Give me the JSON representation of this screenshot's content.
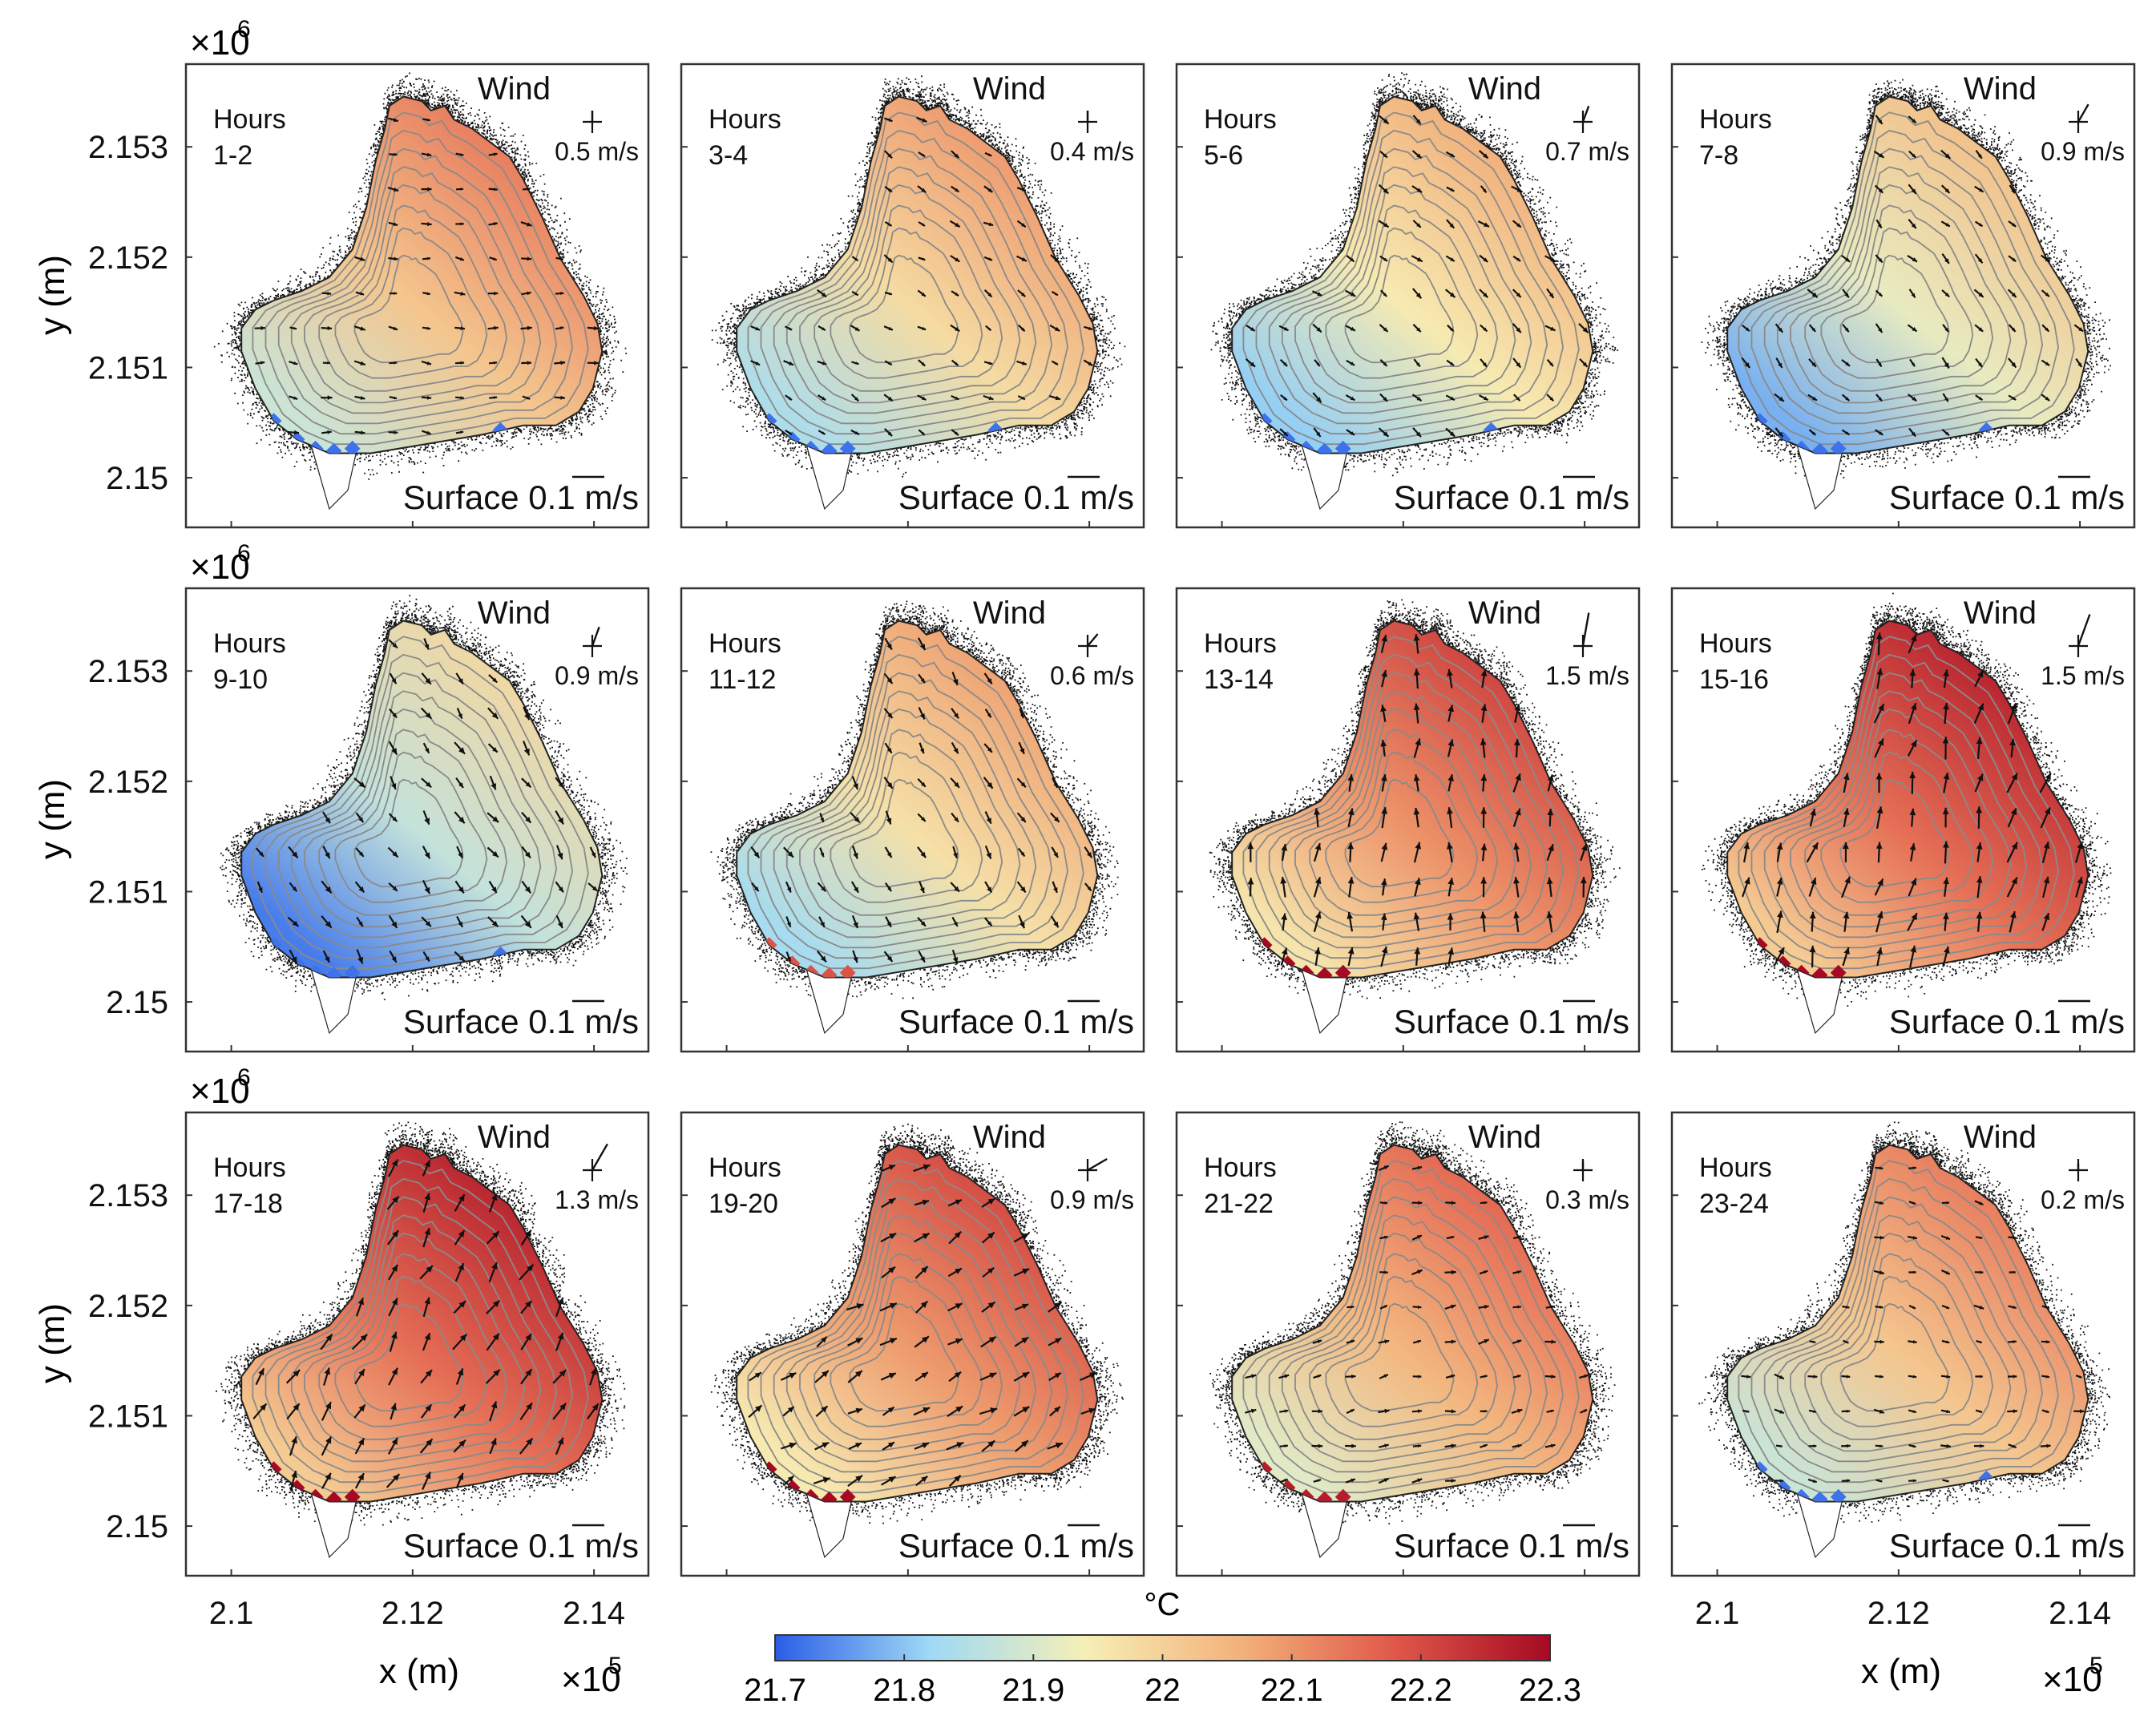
{
  "figure": {
    "x_exponent": "×10",
    "x_exponent_power": "5",
    "y_exponent": "×10",
    "y_exponent_power": "6",
    "xlabel": "x (m)",
    "ylabel": "y (m)",
    "wind_label": "Wind",
    "hours_label": "Hours",
    "surface_label": "Surface 0.1 m/s",
    "colorbar_unit": "°C"
  },
  "chart_data": {
    "type": "heatmap",
    "description_units": "surface water temperature (°C) with surface current and wind vectors",
    "x_ticks": [
      {
        "value": 2.1,
        "label": "2.1"
      },
      {
        "value": 2.12,
        "label": "2.12"
      },
      {
        "value": 2.14,
        "label": "2.14"
      }
    ],
    "y_ticks": [
      {
        "value": 2.15,
        "label": "2.15"
      },
      {
        "value": 2.151,
        "label": "2.151"
      },
      {
        "value": 2.152,
        "label": "2.152"
      },
      {
        "value": 2.153,
        "label": "2.153"
      }
    ],
    "xlim": [
      2.095,
      2.146
    ],
    "ylim": [
      2.14955,
      2.15375
    ],
    "colorbar": {
      "range": [
        21.7,
        22.3
      ],
      "ticks": [
        "21.7",
        "21.8",
        "21.9",
        "22",
        "22.1",
        "22.2",
        "22.3"
      ],
      "colors": [
        "#2a5de8",
        "#9fd9f5",
        "#f6efb6",
        "#f3b27a",
        "#e0584a",
        "#a50a22"
      ]
    },
    "panels": [
      {
        "hours": "1-2",
        "wind": "0.5 m/s",
        "wind_dir_deg": 0,
        "wind_len": 0.1,
        "mean_temp": 22.02,
        "current_dir_deg": 95,
        "current_len": 0.25,
        "cold_edge": true
      },
      {
        "hours": "3-4",
        "wind": "0.4 m/s",
        "wind_dir_deg": 0,
        "wind_len": 0.1,
        "mean_temp": 21.98,
        "current_dir_deg": 120,
        "current_len": 0.25,
        "cold_edge": true
      },
      {
        "hours": "5-6",
        "wind": "0.7 m/s",
        "wind_dir_deg": 20,
        "wind_len": 0.15,
        "mean_temp": 21.95,
        "current_dir_deg": 130,
        "current_len": 0.3,
        "cold_edge": true
      },
      {
        "hours": "7-8",
        "wind": "0.9 m/s",
        "wind_dir_deg": 30,
        "wind_len": 0.18,
        "mean_temp": 21.92,
        "current_dir_deg": 135,
        "current_len": 0.3,
        "cold_edge": true
      },
      {
        "hours": "9-10",
        "wind": "0.9 m/s",
        "wind_dir_deg": 20,
        "wind_len": 0.18,
        "mean_temp": 21.87,
        "current_dir_deg": 145,
        "current_len": 0.4,
        "cold_edge": true
      },
      {
        "hours": "11-12",
        "wind": "0.6 m/s",
        "wind_dir_deg": 40,
        "wind_len": 0.14,
        "mean_temp": 21.97,
        "current_dir_deg": 150,
        "current_len": 0.35,
        "cold_edge": false
      },
      {
        "hours": "13-14",
        "wind": "1.5 m/s",
        "wind_dir_deg": 10,
        "wind_len": 0.3,
        "mean_temp": 22.1,
        "current_dir_deg": 5,
        "current_len": 0.6,
        "cold_edge": false
      },
      {
        "hours": "15-16",
        "wind": "1.5 m/s",
        "wind_dir_deg": 20,
        "wind_len": 0.3,
        "mean_temp": 22.15,
        "current_dir_deg": 15,
        "current_len": 0.65,
        "cold_edge": false
      },
      {
        "hours": "17-18",
        "wind": "1.3 m/s",
        "wind_dir_deg": 30,
        "wind_len": 0.27,
        "mean_temp": 22.15,
        "current_dir_deg": 30,
        "current_len": 0.6,
        "cold_edge": false
      },
      {
        "hours": "19-20",
        "wind": "0.9 m/s",
        "wind_dir_deg": 60,
        "wind_len": 0.2,
        "mean_temp": 22.09,
        "current_dir_deg": 60,
        "current_len": 0.5,
        "cold_edge": false
      },
      {
        "hours": "21-22",
        "wind": "0.3 m/s",
        "wind_dir_deg": 0,
        "wind_len": 0.08,
        "mean_temp": 22.05,
        "current_dir_deg": 80,
        "current_len": 0.25,
        "cold_edge": false
      },
      {
        "hours": "23-24",
        "wind": "0.2 m/s",
        "wind_dir_deg": 0,
        "wind_len": 0.06,
        "mean_temp": 22.02,
        "current_dir_deg": 100,
        "current_len": 0.22,
        "cold_edge": true
      }
    ]
  }
}
